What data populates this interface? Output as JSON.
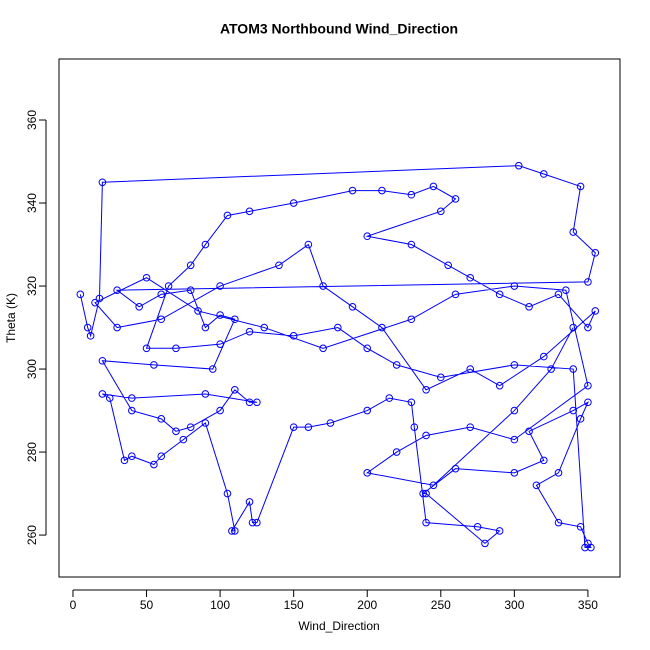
{
  "chart_data": {
    "type": "line",
    "title": "ATOM3 Northbound Wind_Direction",
    "xlabel": "Wind_Direction",
    "ylabel": "Theta (K)",
    "marker": "circle",
    "x": [
      5,
      10,
      12,
      18,
      20,
      303,
      320,
      345,
      340,
      355,
      350,
      30,
      45,
      60,
      80,
      90,
      100,
      110,
      95,
      55,
      20,
      40,
      60,
      70,
      80,
      100,
      110,
      120,
      125,
      90,
      40,
      20,
      25,
      35,
      40,
      55,
      60,
      75,
      90,
      105,
      110,
      108,
      120,
      122,
      125,
      150,
      160,
      175,
      200,
      215,
      230,
      232,
      240,
      275,
      290,
      280,
      240,
      238,
      260,
      300,
      320,
      310,
      340,
      350,
      345,
      330,
      315,
      330,
      345,
      350,
      352,
      348,
      340,
      300,
      250,
      220,
      200,
      180,
      150,
      120,
      100,
      70,
      50,
      65,
      80,
      90,
      105,
      120,
      150,
      190,
      210,
      230,
      245,
      260,
      250,
      200,
      230,
      255,
      270,
      290,
      310,
      330,
      350,
      355,
      320,
      290,
      270,
      240,
      210,
      190,
      170,
      160,
      140,
      100,
      60,
      30,
      15,
      50,
      85,
      130,
      170,
      230,
      260,
      300,
      335,
      350,
      300,
      270,
      240,
      220,
      200,
      245,
      300,
      325,
      340
    ],
    "series": [
      {
        "color": "#0000ff",
        "values": [
          318,
          310,
          308,
          317,
          345,
          349,
          347,
          344,
          333,
          328,
          321,
          319,
          315,
          318,
          319,
          310,
          313,
          312,
          300,
          301,
          302,
          290,
          288,
          285,
          286,
          290,
          295,
          292,
          292,
          294,
          293,
          294,
          293,
          278,
          279,
          277,
          279,
          283,
          287,
          270,
          261,
          261,
          268,
          263,
          263,
          286,
          286,
          287,
          290,
          293,
          292,
          286,
          263,
          262,
          261,
          258,
          270,
          270,
          276,
          275,
          278,
          285,
          290,
          292,
          288,
          275,
          272,
          263,
          262,
          258,
          257,
          257,
          300,
          301,
          298,
          301,
          305,
          310,
          308,
          309,
          306,
          305,
          305,
          320,
          325,
          330,
          337,
          338,
          340,
          343,
          343,
          342,
          344,
          341,
          338,
          332,
          330,
          325,
          322,
          318,
          315,
          318,
          310,
          314,
          303,
          296,
          300,
          295,
          310,
          315,
          320,
          330,
          325,
          320,
          312,
          310,
          316,
          322,
          314,
          310,
          305,
          312,
          318,
          320,
          319,
          296,
          283,
          286,
          284,
          280,
          275,
          272,
          290,
          300,
          310
        ]
      }
    ],
    "xlim": [
      -9.5,
      371.8
    ],
    "ylim": [
      249.9,
      374.7
    ],
    "xticks": [
      0,
      50,
      100,
      150,
      200,
      250,
      300,
      350
    ],
    "yticks": [
      260,
      280,
      300,
      320,
      340,
      360
    ]
  }
}
